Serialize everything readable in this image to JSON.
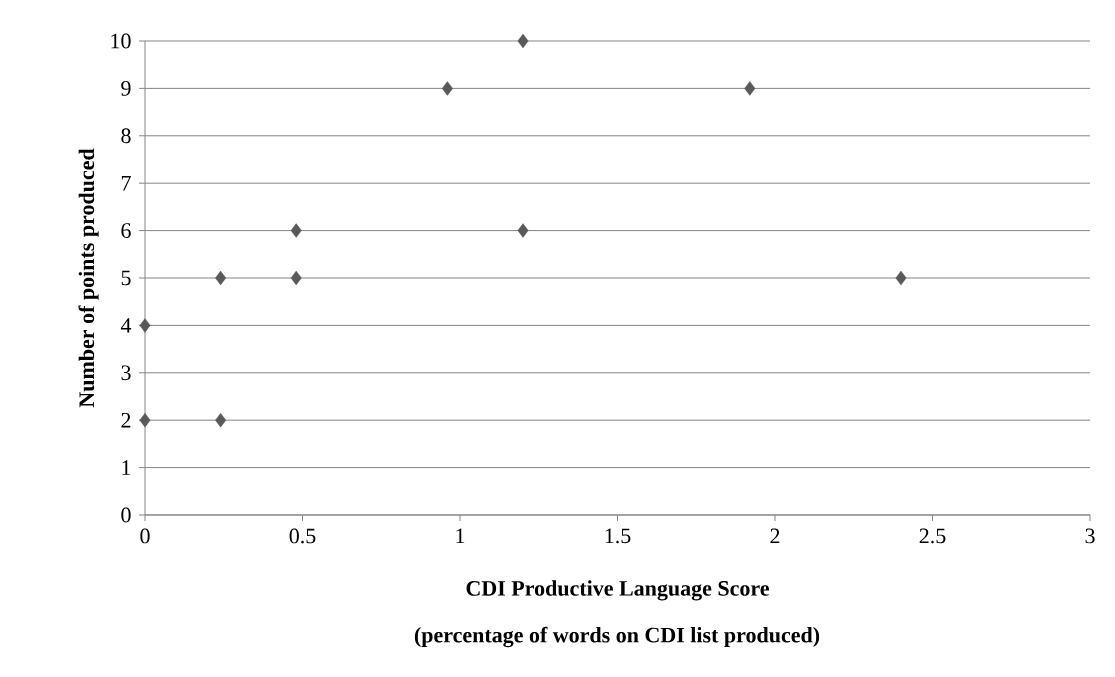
{
  "chart_data": {
    "type": "scatter",
    "xlabel": "CDI Productive Language Score",
    "ylabel": "Number of points produced",
    "annotations": [
      "(percentage of words on CDI list produced)"
    ],
    "x": [
      0,
      0,
      0.24,
      0.24,
      0.48,
      0.48,
      0.96,
      1.2,
      1.2,
      1.92,
      2.4
    ],
    "values": [
      4,
      2,
      5,
      2,
      6,
      5,
      9,
      10,
      6,
      9,
      5
    ],
    "color": "#595959",
    "marker": "diamond",
    "xlim": [
      0,
      3
    ],
    "xticks": [
      0,
      0.5,
      1,
      1.5,
      2,
      2.5,
      3
    ],
    "ylim": [
      0,
      10
    ],
    "yticks": [
      0,
      1,
      2,
      3,
      4,
      5,
      6,
      7,
      8,
      9,
      10
    ],
    "grid": "y"
  }
}
